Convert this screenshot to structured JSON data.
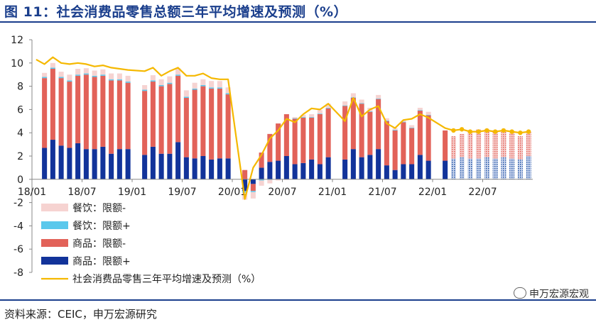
{
  "figure_title": "图 11：社会消费品零售总额三年平均增速及预测（%）",
  "source": "资料来源：CEIC，申万宏源研究",
  "watermark": "申万宏源宏观",
  "colors": {
    "food_minus": "#f6d3d1",
    "food_plus": "#5bc8ec",
    "goods_minus": "#e26259",
    "goods_plus": "#12339a",
    "forecast_pattern": "#1c4fa0",
    "line": "#f5b800",
    "title": "#1a3e8c"
  },
  "chart_data": {
    "type": "bar",
    "stacked": true,
    "ylim": [
      -8,
      12
    ],
    "yticks": [
      -8,
      -6,
      -4,
      -2,
      0,
      2,
      4,
      6,
      8,
      10,
      12
    ],
    "xtick_labels": [
      "18/01",
      "18/07",
      "19/01",
      "19/07",
      "20/01",
      "20/07",
      "21/01",
      "21/07",
      "22/01",
      "22/07"
    ],
    "xtick_month_index": [
      0,
      6,
      12,
      18,
      24,
      30,
      36,
      42,
      48,
      54
    ],
    "months": [
      "18/01",
      "18/02",
      "18/03",
      "18/04",
      "18/05",
      "18/06",
      "18/07",
      "18/08",
      "18/09",
      "18/10",
      "18/11",
      "18/12",
      "19/01",
      "19/02",
      "19/03",
      "19/04",
      "19/05",
      "19/06",
      "19/07",
      "19/08",
      "19/09",
      "19/10",
      "19/11",
      "19/12",
      "20/01",
      "20/02",
      "20/03",
      "20/04",
      "20/05",
      "20/06",
      "20/07",
      "20/08",
      "20/09",
      "20/10",
      "20/11",
      "20/12",
      "21/01",
      "21/02",
      "21/03",
      "21/04",
      "21/05",
      "21/06",
      "21/07",
      "21/08",
      "21/09",
      "21/10",
      "21/11",
      "21/12",
      "22/01",
      "22/02",
      "22/03",
      "22/04",
      "22/05",
      "22/06",
      "22/07",
      "22/08",
      "22/09",
      "22/10",
      "22/11",
      "22/12"
    ],
    "forecast_start_index": 50,
    "grid": false,
    "legend_position": "bottom-left",
    "series": [
      {
        "name": "餐饮：限额-",
        "values": [
          null,
          0.35,
          0.4,
          0.45,
          0.5,
          0.5,
          0.45,
          0.45,
          0.45,
          0.5,
          0.5,
          0.5,
          null,
          0.4,
          0.45,
          0.5,
          0.55,
          0.55,
          0.55,
          0.5,
          0.5,
          0.55,
          0.55,
          0.5,
          null,
          -0.6,
          -0.55,
          -0.45,
          -0.3,
          -0.1,
          -0.05,
          0.1,
          0.2,
          0.25,
          0.3,
          0.35,
          null,
          0.35,
          0.35,
          0.3,
          0.3,
          0.3,
          0.2,
          0.15,
          0.1,
          0.2,
          0.2,
          0.25,
          null,
          null,
          null,
          null,
          null,
          null,
          null,
          null,
          null,
          null,
          null,
          null
        ]
      },
      {
        "name": "餐饮：限额+",
        "values": [
          null,
          0.1,
          0.1,
          0.1,
          0.1,
          0.1,
          0.1,
          0.1,
          0.1,
          0.1,
          0.1,
          0.1,
          null,
          0.1,
          0.1,
          0.1,
          0.1,
          0.1,
          0.1,
          0.1,
          0.1,
          0.1,
          0.1,
          0.1,
          null,
          -0.15,
          -0.1,
          -0.1,
          -0.05,
          0,
          0,
          0.05,
          0.05,
          0.05,
          0.05,
          0.05,
          null,
          0.05,
          0.05,
          0.05,
          0.05,
          0.05,
          0.05,
          0.05,
          0.05,
          0.05,
          0.05,
          0.05,
          null,
          null,
          null,
          null,
          null,
          null,
          null,
          null,
          null,
          null,
          null,
          null
        ]
      },
      {
        "name": "商品：限额-",
        "values": [
          null,
          6.0,
          6.1,
          5.8,
          5.7,
          5.8,
          6.4,
          6.2,
          6.1,
          6.3,
          5.9,
          5.7,
          null,
          5.5,
          5.6,
          5.8,
          6.0,
          5.7,
          5.1,
          5.9,
          6.0,
          6.1,
          6.0,
          5.5,
          null,
          0.8,
          -0.6,
          1.3,
          2.4,
          3.2,
          3.6,
          3.9,
          3.9,
          3.6,
          4.3,
          4.2,
          null,
          4.6,
          4.4,
          4.6,
          3.7,
          4.3,
          3.8,
          3.4,
          3.6,
          3.1,
          3.8,
          3.9,
          null,
          2.6,
          1.9,
          2.0,
          2.3,
          2.5,
          2.4,
          2.4,
          2.3,
          2.2,
          2.0,
          2.1
        ]
      },
      {
        "name": "商品：限额+",
        "values": [
          null,
          2.7,
          3.4,
          2.9,
          2.7,
          3.1,
          2.6,
          2.6,
          2.8,
          2.2,
          2.6,
          2.6,
          null,
          2.1,
          2.8,
          2.2,
          2.2,
          3.2,
          1.9,
          1.8,
          2.0,
          1.7,
          1.8,
          1.8,
          null,
          -1.0,
          -0.4,
          1.0,
          1.5,
          1.6,
          2.0,
          1.3,
          1.4,
          1.7,
          1.3,
          1.9,
          null,
          1.7,
          2.6,
          1.9,
          2.1,
          2.6,
          1.2,
          0.8,
          1.3,
          1.3,
          2.1,
          1.6,
          null,
          1.6,
          1.8,
          1.9,
          1.8,
          1.8,
          1.9,
          1.8,
          1.9,
          1.8,
          1.7,
          2.0
        ]
      },
      {
        "name": "社会消费品零售三年平均增速及预测（%）",
        "type": "line",
        "values": [
          10.3,
          9.9,
          10.5,
          10.0,
          9.9,
          10.0,
          9.9,
          9.7,
          9.8,
          9.6,
          9.5,
          9.4,
          null,
          9.3,
          9.6,
          8.9,
          9.3,
          9.6,
          8.9,
          8.9,
          9.1,
          8.7,
          8.6,
          8.6,
          null,
          -1.7,
          1.0,
          2.1,
          3.5,
          4.2,
          5.2,
          4.9,
          5.6,
          6.1,
          6.0,
          6.5,
          null,
          5.0,
          7.0,
          5.4,
          6.0,
          6.3,
          4.8,
          4.4,
          5.1,
          5.2,
          5.6,
          5.3,
          null,
          4.4,
          4.2,
          4.3,
          4.1,
          4.1,
          4.2,
          4.1,
          4.2,
          4.1,
          4.0,
          4.1
        ]
      }
    ],
    "legend": [
      "餐饮：限额-",
      "餐饮：限额+",
      "商品：限额-",
      "商品：限额+",
      "社会消费品零售三年平均增速及预测（%）"
    ]
  }
}
